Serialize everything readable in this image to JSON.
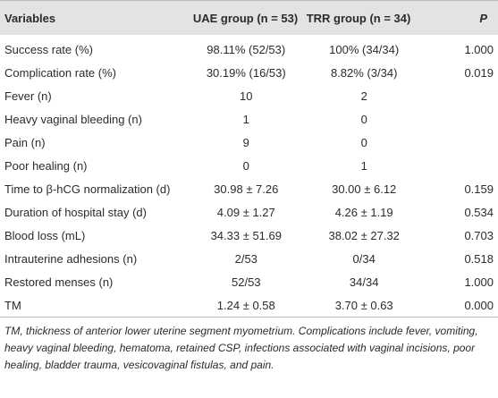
{
  "table": {
    "header": [
      "Variables",
      "UAE group (n = 53)",
      "TRR group (n = 34)",
      "P"
    ],
    "rows": [
      [
        "Success rate (%)",
        "98.11% (52/53)",
        "100% (34/34)",
        "1.000"
      ],
      [
        "Complication rate (%)",
        "30.19% (16/53)",
        "8.82% (3/34)",
        "0.019"
      ],
      [
        "Fever (n)",
        "10",
        "2"
      ],
      [
        "Heavy vaginal bleeding (n)",
        "1",
        "0"
      ],
      [
        "Pain (n)",
        "9",
        "0"
      ],
      [
        "Poor healing (n)",
        "0",
        "1"
      ],
      [
        "Time to β-hCG normalization (d)",
        "30.98 ± 7.26",
        "30.00 ± 6.12",
        "0.159"
      ],
      [
        "Duration of hospital stay (d)",
        "4.09 ± 1.27",
        "4.26 ± 1.19",
        "0.534"
      ],
      [
        "Blood loss (mL)",
        "34.33 ± 51.69",
        "38.02 ± 27.32",
        "0.703"
      ],
      [
        "Intrauterine adhesions (n)",
        "2/53",
        "0/34",
        "0.518"
      ],
      [
        "Restored menses (n)",
        "52/53",
        "34/34",
        "1.000"
      ],
      [
        "TM",
        "1.24 ± 0.58",
        "3.70 ± 0.63",
        "0.000"
      ]
    ]
  },
  "footnote": "TM, thickness of anterior lower uterine segment myometrium. Complications include fever, vomiting, heavy vaginal bleeding, hematoma, retained CSP, infections associated with vaginal incisions, poor healing, bladder trauma, vesicovaginal fistulas, and pain."
}
